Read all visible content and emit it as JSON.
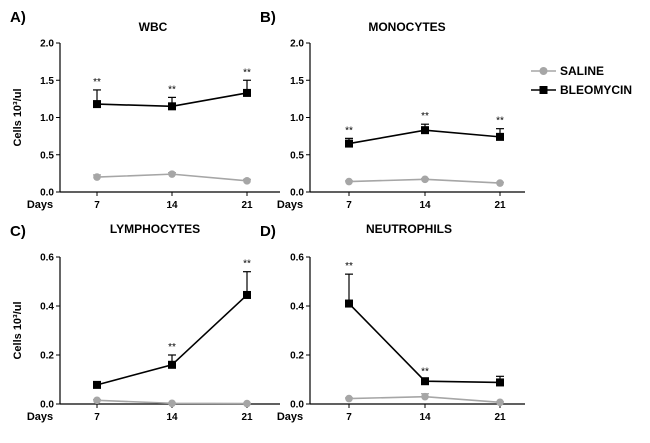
{
  "legend": {
    "saline": {
      "label": "SALINE",
      "color": "#a6a6a6"
    },
    "bleomycin": {
      "label": "BLEOMYCIN",
      "color": "#000000"
    }
  },
  "chart_data": [
    {
      "type": "line",
      "panel": "A)",
      "title": "WBC",
      "xlabel": "Days",
      "ylabel": "Cells 10³/ul",
      "categories": [
        "7",
        "14",
        "21"
      ],
      "ylim": [
        0.0,
        2.0
      ],
      "yticks": [
        "0.0",
        "0.5",
        "1.0",
        "1.5",
        "2.0"
      ],
      "series": [
        {
          "name": "SALINE",
          "values": [
            0.2,
            0.24,
            0.15
          ],
          "errors": [
            0.03,
            0.02,
            0.02
          ]
        },
        {
          "name": "BLEOMYCIN",
          "values": [
            1.18,
            1.15,
            1.33
          ],
          "errors": [
            0.19,
            0.12,
            0.17
          ]
        }
      ],
      "annotations": [
        "**",
        "**",
        "**"
      ]
    },
    {
      "type": "line",
      "panel": "B)",
      "title": "MONOCYTES",
      "xlabel": "Days",
      "ylabel": "",
      "categories": [
        "7",
        "14",
        "21"
      ],
      "ylim": [
        0.0,
        2.0
      ],
      "yticks": [
        "0.0",
        "0.5",
        "1.0",
        "1.5",
        "2.0"
      ],
      "series": [
        {
          "name": "SALINE",
          "values": [
            0.14,
            0.17,
            0.12
          ],
          "errors": [
            0.01,
            0.01,
            0.01
          ]
        },
        {
          "name": "BLEOMYCIN",
          "values": [
            0.65,
            0.83,
            0.74
          ],
          "errors": [
            0.07,
            0.08,
            0.11
          ]
        }
      ],
      "annotations": [
        "**",
        "**",
        "**"
      ]
    },
    {
      "type": "line",
      "panel": "C)",
      "title": "LYMPHOCYTES",
      "xlabel": "Days",
      "ylabel": "Cells 10³/ul",
      "categories": [
        "7",
        "14",
        "21"
      ],
      "ylim": [
        0.0,
        0.6
      ],
      "yticks": [
        "0.0",
        "0.2",
        "0.4",
        "0.6"
      ],
      "series": [
        {
          "name": "SALINE",
          "values": [
            0.015,
            0.003,
            0.002
          ],
          "errors": [
            0.003,
            0.001,
            0.001
          ]
        },
        {
          "name": "BLEOMYCIN",
          "values": [
            0.078,
            0.16,
            0.445
          ],
          "errors": [
            0.01,
            0.04,
            0.095
          ]
        }
      ],
      "annotations": [
        "",
        "**",
        "**"
      ]
    },
    {
      "type": "line",
      "panel": "D)",
      "title": "NEUTROPHILS",
      "xlabel": "Days",
      "ylabel": "",
      "categories": [
        "7",
        "14",
        "21"
      ],
      "ylim": [
        0.0,
        0.6
      ],
      "yticks": [
        "0.0",
        "0.2",
        "0.4",
        "0.6"
      ],
      "series": [
        {
          "name": "SALINE",
          "values": [
            0.022,
            0.03,
            0.007
          ],
          "errors": [
            0.003,
            0.012,
            0.002
          ]
        },
        {
          "name": "BLEOMYCIN",
          "values": [
            0.41,
            0.093,
            0.088
          ],
          "errors": [
            0.12,
            0.008,
            0.025
          ]
        }
      ],
      "annotations": [
        "**",
        "**",
        ""
      ]
    }
  ]
}
